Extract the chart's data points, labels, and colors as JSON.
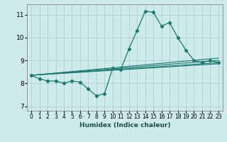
{
  "xlabel": "Humidex (Indice chaleur)",
  "ylabel": "",
  "bg_color": "#ceeaea",
  "grid_color": "#aed4d4",
  "line_color": "#1a7a6e",
  "xlim": [
    -0.5,
    23.5
  ],
  "ylim": [
    6.8,
    11.45
  ],
  "yticks": [
    7,
    8,
    9,
    10,
    11
  ],
  "xticks": [
    0,
    1,
    2,
    3,
    4,
    5,
    6,
    7,
    8,
    9,
    10,
    11,
    12,
    13,
    14,
    15,
    16,
    17,
    18,
    19,
    20,
    21,
    22,
    23
  ],
  "main_curve_x": [
    0,
    1,
    2,
    3,
    4,
    5,
    6,
    7,
    8,
    9,
    10,
    11,
    12,
    13,
    14,
    15,
    16,
    17,
    18,
    19,
    20,
    21,
    22,
    23
  ],
  "main_curve_y": [
    8.35,
    8.2,
    8.1,
    8.1,
    8.0,
    8.1,
    8.05,
    7.75,
    7.45,
    7.55,
    8.65,
    8.6,
    9.5,
    10.3,
    11.15,
    11.1,
    10.5,
    10.65,
    10.0,
    9.45,
    9.0,
    8.9,
    9.0,
    8.9
  ],
  "trend_lines": [
    {
      "x": [
        0,
        23
      ],
      "y": [
        8.35,
        9.1
      ]
    },
    {
      "x": [
        0,
        23
      ],
      "y": [
        8.35,
        9.0
      ]
    },
    {
      "x": [
        0,
        23
      ],
      "y": [
        8.35,
        8.9
      ]
    },
    {
      "x": [
        0,
        23
      ],
      "y": [
        8.35,
        8.85
      ]
    }
  ]
}
